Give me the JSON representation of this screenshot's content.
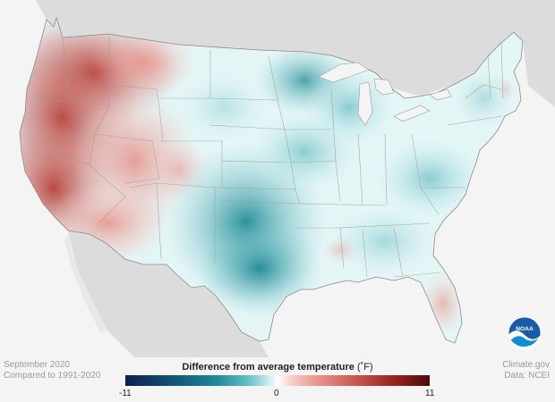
{
  "footer": {
    "date": "September 2020",
    "comparison": "Compared to 1991-2020",
    "source_site": "Climate.gov",
    "data_source": "Data: NCEI"
  },
  "legend": {
    "title": "Difference from average temperature",
    "unit": "(˚F)",
    "min_label": "-11",
    "mid_label": "0",
    "max_label": "11",
    "colors": {
      "cold_extreme": "#0b1f4d",
      "cold": "#1e8a97",
      "neutral": "#ffffff",
      "warm": "#c95a52",
      "warm_extreme": "#4a0b0b"
    }
  },
  "logo": {
    "text": "NOAA",
    "icon": "noaa-logo-icon"
  },
  "map": {
    "land_background": "#d8d8d8",
    "water_background": "#f4f4f4"
  }
}
